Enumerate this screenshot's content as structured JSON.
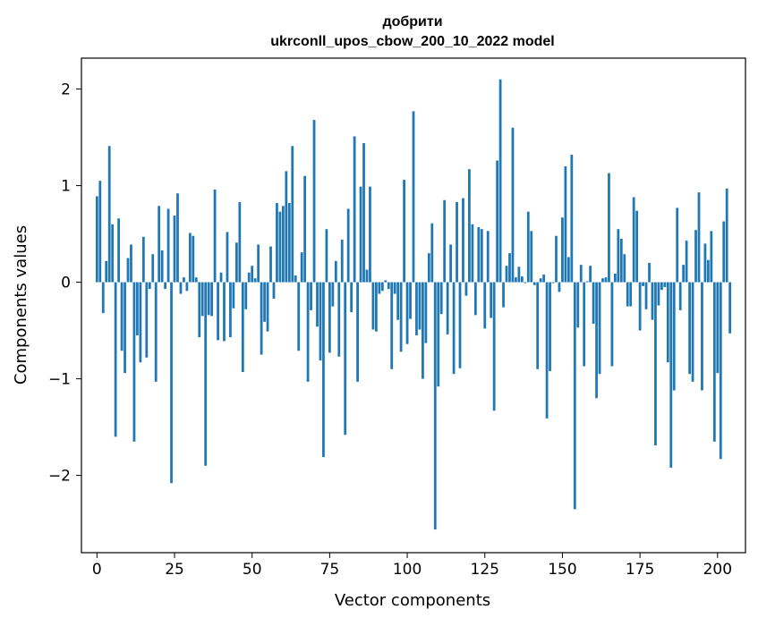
{
  "chart_data": {
    "type": "bar",
    "title_line1": "добрити",
    "title_line2": "ukrconll_upos_cbow_200_10_2022 model",
    "xlabel": "Vector components",
    "ylabel": "Components values",
    "xlim": [
      -5,
      209
    ],
    "ylim": [
      -2.8,
      2.32
    ],
    "bar_color": "#1f77b4",
    "grid": false,
    "xticks": [
      0,
      25,
      50,
      75,
      100,
      125,
      150,
      175,
      200
    ],
    "xtick_labels": [
      "0",
      "25",
      "50",
      "75",
      "100",
      "125",
      "150",
      "175",
      "200"
    ],
    "yticks": [
      -2,
      -1,
      0,
      1,
      2
    ],
    "ytick_labels": [
      "−2",
      "−1",
      "0",
      "1",
      "2"
    ],
    "values": [
      0.89,
      1.05,
      -0.32,
      0.22,
      1.41,
      0.6,
      -1.6,
      0.66,
      -0.71,
      -0.94,
      0.25,
      0.39,
      -1.65,
      -0.55,
      -0.83,
      0.47,
      -0.78,
      -0.07,
      0.29,
      -1.03,
      0.79,
      0.33,
      -0.07,
      0.76,
      -2.08,
      0.69,
      0.92,
      -0.12,
      0.05,
      -0.09,
      0.51,
      0.48,
      0.05,
      -0.57,
      -0.35,
      -1.9,
      -0.34,
      -0.35,
      0.96,
      -0.6,
      0.1,
      -0.61,
      0.52,
      -0.57,
      -0.27,
      0.41,
      0.83,
      -0.93,
      -0.28,
      0.1,
      0.17,
      0.04,
      0.39,
      -0.75,
      -0.41,
      -0.51,
      0.37,
      -0.17,
      0.82,
      0.73,
      0.79,
      1.15,
      0.82,
      1.41,
      0.07,
      -0.71,
      0.31,
      1.1,
      -1.03,
      -0.29,
      1.68,
      -0.46,
      -0.81,
      -1.81,
      0.55,
      -0.73,
      -0.25,
      0.22,
      -0.77,
      0.44,
      -1.58,
      0.76,
      -0.31,
      1.51,
      -1.03,
      0.99,
      1.44,
      0.13,
      0.99,
      -0.49,
      -0.51,
      -0.12,
      -0.09,
      0.02,
      -0.07,
      -0.9,
      -0.12,
      -0.39,
      -0.72,
      1.06,
      -0.64,
      -0.38,
      1.77,
      -0.55,
      -0.49,
      -1.0,
      -0.63,
      0.3,
      0.61,
      -2.56,
      -1.08,
      -0.33,
      0.85,
      -0.54,
      0.39,
      -0.95,
      0.83,
      -0.89,
      0.87,
      -0.14,
      1.17,
      0.6,
      -0.34,
      0.57,
      0.55,
      -0.48,
      0.53,
      -0.37,
      -1.33,
      1.26,
      2.1,
      -0.26,
      0.17,
      0.3,
      1.6,
      0.05,
      0.16,
      0.06,
      -0.01,
      0.73,
      0.53,
      -0.03,
      -0.9,
      0.04,
      0.08,
      -1.41,
      -0.92,
      -0.01,
      0.48,
      -0.1,
      0.67,
      1.2,
      0.26,
      1.32,
      -2.35,
      -0.47,
      0.18,
      -0.87,
      0.01,
      0.17,
      -0.43,
      -1.2,
      -0.95,
      0.04,
      0.05,
      1.13,
      -0.87,
      0.09,
      0.55,
      0.45,
      0.29,
      -0.25,
      -0.25,
      0.88,
      0.74,
      -0.5,
      -0.04,
      -0.28,
      0.2,
      -0.39,
      -1.69,
      -0.24,
      -0.08,
      -0.05,
      -0.83,
      -1.92,
      -1.12,
      0.77,
      -0.29,
      0.18,
      0.43,
      -0.95,
      -1.03,
      0.54,
      0.93,
      -1.12,
      0.4,
      0.23,
      0.53,
      -1.65,
      -0.94,
      -1.83,
      0.63,
      0.97,
      -0.53
    ]
  }
}
